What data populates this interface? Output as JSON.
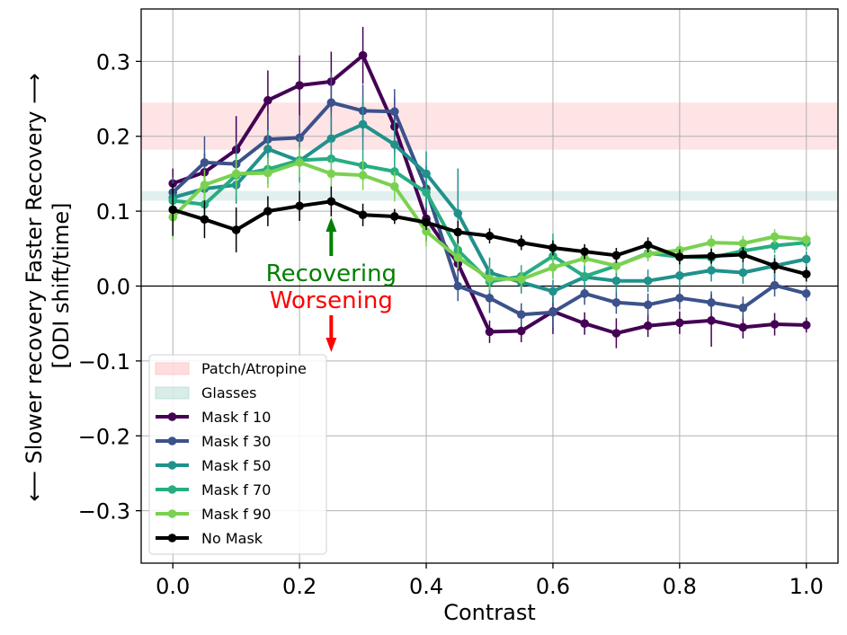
{
  "chart_data": {
    "type": "line",
    "xlabel": "Contrast",
    "ylabel_lines": [
      "Slower recovery",
      "Faster Recovery",
      "[ODI shift/time]"
    ],
    "ylabel_arrows": [
      "⟵",
      "⟶"
    ],
    "xlim": [
      -0.05,
      1.05
    ],
    "ylim": [
      -0.37,
      0.37
    ],
    "xticks": [
      0.0,
      0.2,
      0.4,
      0.6,
      0.8,
      1.0
    ],
    "xtick_labels": [
      "0.0",
      "0.2",
      "0.4",
      "0.6",
      "0.8",
      "1.0"
    ],
    "yticks": [
      -0.3,
      -0.2,
      -0.1,
      0.0,
      0.1,
      0.2,
      0.3
    ],
    "ytick_labels": [
      "−0.3",
      "−0.2",
      "−0.1",
      "0.0",
      "0.1",
      "0.2",
      "0.3"
    ],
    "grid": true,
    "legend_position": "lower-left",
    "bands": [
      {
        "name": "Patch/Atropine",
        "y": [
          0.182,
          0.245
        ],
        "color": "#ffb3b8",
        "opacity": 0.35
      },
      {
        "name": "Glasses",
        "y": [
          0.114,
          0.127
        ],
        "color": "#a8d5cf",
        "opacity": 0.35
      }
    ],
    "annotations": [
      {
        "text": "Recovering",
        "color": "#008000",
        "x": 0.25,
        "y": 0.017,
        "arrow": "up"
      },
      {
        "text": "Worsening",
        "color": "#ff0000",
        "x": 0.25,
        "y": -0.02,
        "arrow": "down"
      }
    ],
    "x": [
      0.0,
      0.05,
      0.1,
      0.15,
      0.2,
      0.25,
      0.3,
      0.35,
      0.4,
      0.45,
      0.5,
      0.55,
      0.6,
      0.65,
      0.7,
      0.75,
      0.8,
      0.85,
      0.9,
      0.95,
      1.0
    ],
    "series": [
      {
        "name": "Mask f 10",
        "color": "#440154",
        "values": [
          0.137,
          0.152,
          0.182,
          0.248,
          0.268,
          0.273,
          0.308,
          0.213,
          0.09,
          0.03,
          -0.061,
          -0.06,
          -0.034,
          -0.05,
          -0.063,
          -0.053,
          -0.049,
          -0.046,
          -0.055,
          -0.051,
          -0.052
        ],
        "errors": [
          0.02,
          0.025,
          0.045,
          0.04,
          0.04,
          0.04,
          0.038,
          0.04,
          0.03,
          0.02,
          0.015,
          0.015,
          0.03,
          0.015,
          0.02,
          0.015,
          0.015,
          0.035,
          0.015,
          0.015,
          0.01
        ]
      },
      {
        "name": "Mask f 30",
        "color": "#3b528b",
        "values": [
          0.125,
          0.165,
          0.163,
          0.196,
          0.198,
          0.245,
          0.234,
          0.233,
          0.13,
          0.0,
          -0.016,
          -0.038,
          -0.035,
          -0.01,
          -0.022,
          -0.025,
          -0.016,
          -0.022,
          -0.029,
          0.001,
          -0.01
        ],
        "errors": [
          0.02,
          0.035,
          0.03,
          0.035,
          0.03,
          0.04,
          0.035,
          0.03,
          0.03,
          0.02,
          0.02,
          0.015,
          0.02,
          0.015,
          0.015,
          0.015,
          0.015,
          0.015,
          0.015,
          0.015,
          0.01
        ]
      },
      {
        "name": "Mask f 50",
        "color": "#21918c",
        "values": [
          0.118,
          0.13,
          0.135,
          0.183,
          0.167,
          0.197,
          0.216,
          0.189,
          0.15,
          0.097,
          0.018,
          0.005,
          -0.007,
          0.012,
          0.007,
          0.007,
          0.014,
          0.021,
          0.018,
          0.027,
          0.036
        ],
        "errors": [
          0.02,
          0.02,
          0.025,
          0.025,
          0.025,
          0.03,
          0.035,
          0.03,
          0.03,
          0.06,
          0.02,
          0.015,
          0.015,
          0.015,
          0.015,
          0.015,
          0.015,
          0.015,
          0.015,
          0.015,
          0.01
        ]
      },
      {
        "name": "Mask f 70",
        "color": "#27ad81",
        "values": [
          0.114,
          0.109,
          0.148,
          0.156,
          0.168,
          0.17,
          0.161,
          0.153,
          0.125,
          0.048,
          0.006,
          0.013,
          0.04,
          0.013,
          0.027,
          0.044,
          0.039,
          0.038,
          0.047,
          0.054,
          0.058
        ],
        "errors": [
          0.015,
          0.025,
          0.03,
          0.02,
          0.03,
          0.025,
          0.02,
          0.025,
          0.02,
          0.015,
          0.015,
          0.015,
          0.03,
          0.01,
          0.01,
          0.01,
          0.01,
          0.01,
          0.01,
          0.01,
          0.01
        ]
      },
      {
        "name": "Mask f 90",
        "color": "#7ad151",
        "values": [
          0.092,
          0.135,
          0.15,
          0.151,
          0.165,
          0.15,
          0.148,
          0.133,
          0.073,
          0.038,
          0.01,
          0.009,
          0.025,
          0.037,
          0.027,
          0.043,
          0.048,
          0.058,
          0.057,
          0.066,
          0.062
        ],
        "errors": [
          0.03,
          0.02,
          0.02,
          0.02,
          0.02,
          0.02,
          0.02,
          0.02,
          0.02,
          0.015,
          0.015,
          0.01,
          0.015,
          0.01,
          0.01,
          0.01,
          0.01,
          0.01,
          0.01,
          0.01,
          0.01
        ]
      },
      {
        "name": "No Mask",
        "color": "#000000",
        "values": [
          0.102,
          0.089,
          0.075,
          0.1,
          0.107,
          0.113,
          0.095,
          0.093,
          0.085,
          0.072,
          0.067,
          0.058,
          0.051,
          0.046,
          0.041,
          0.055,
          0.039,
          0.04,
          0.042,
          0.027,
          0.016
        ],
        "errors": [
          0.035,
          0.025,
          0.03,
          0.02,
          0.02,
          0.02,
          0.015,
          0.01,
          0.01,
          0.015,
          0.01,
          0.01,
          0.01,
          0.01,
          0.01,
          0.01,
          0.01,
          0.01,
          0.01,
          0.01,
          0.01
        ]
      }
    ]
  }
}
